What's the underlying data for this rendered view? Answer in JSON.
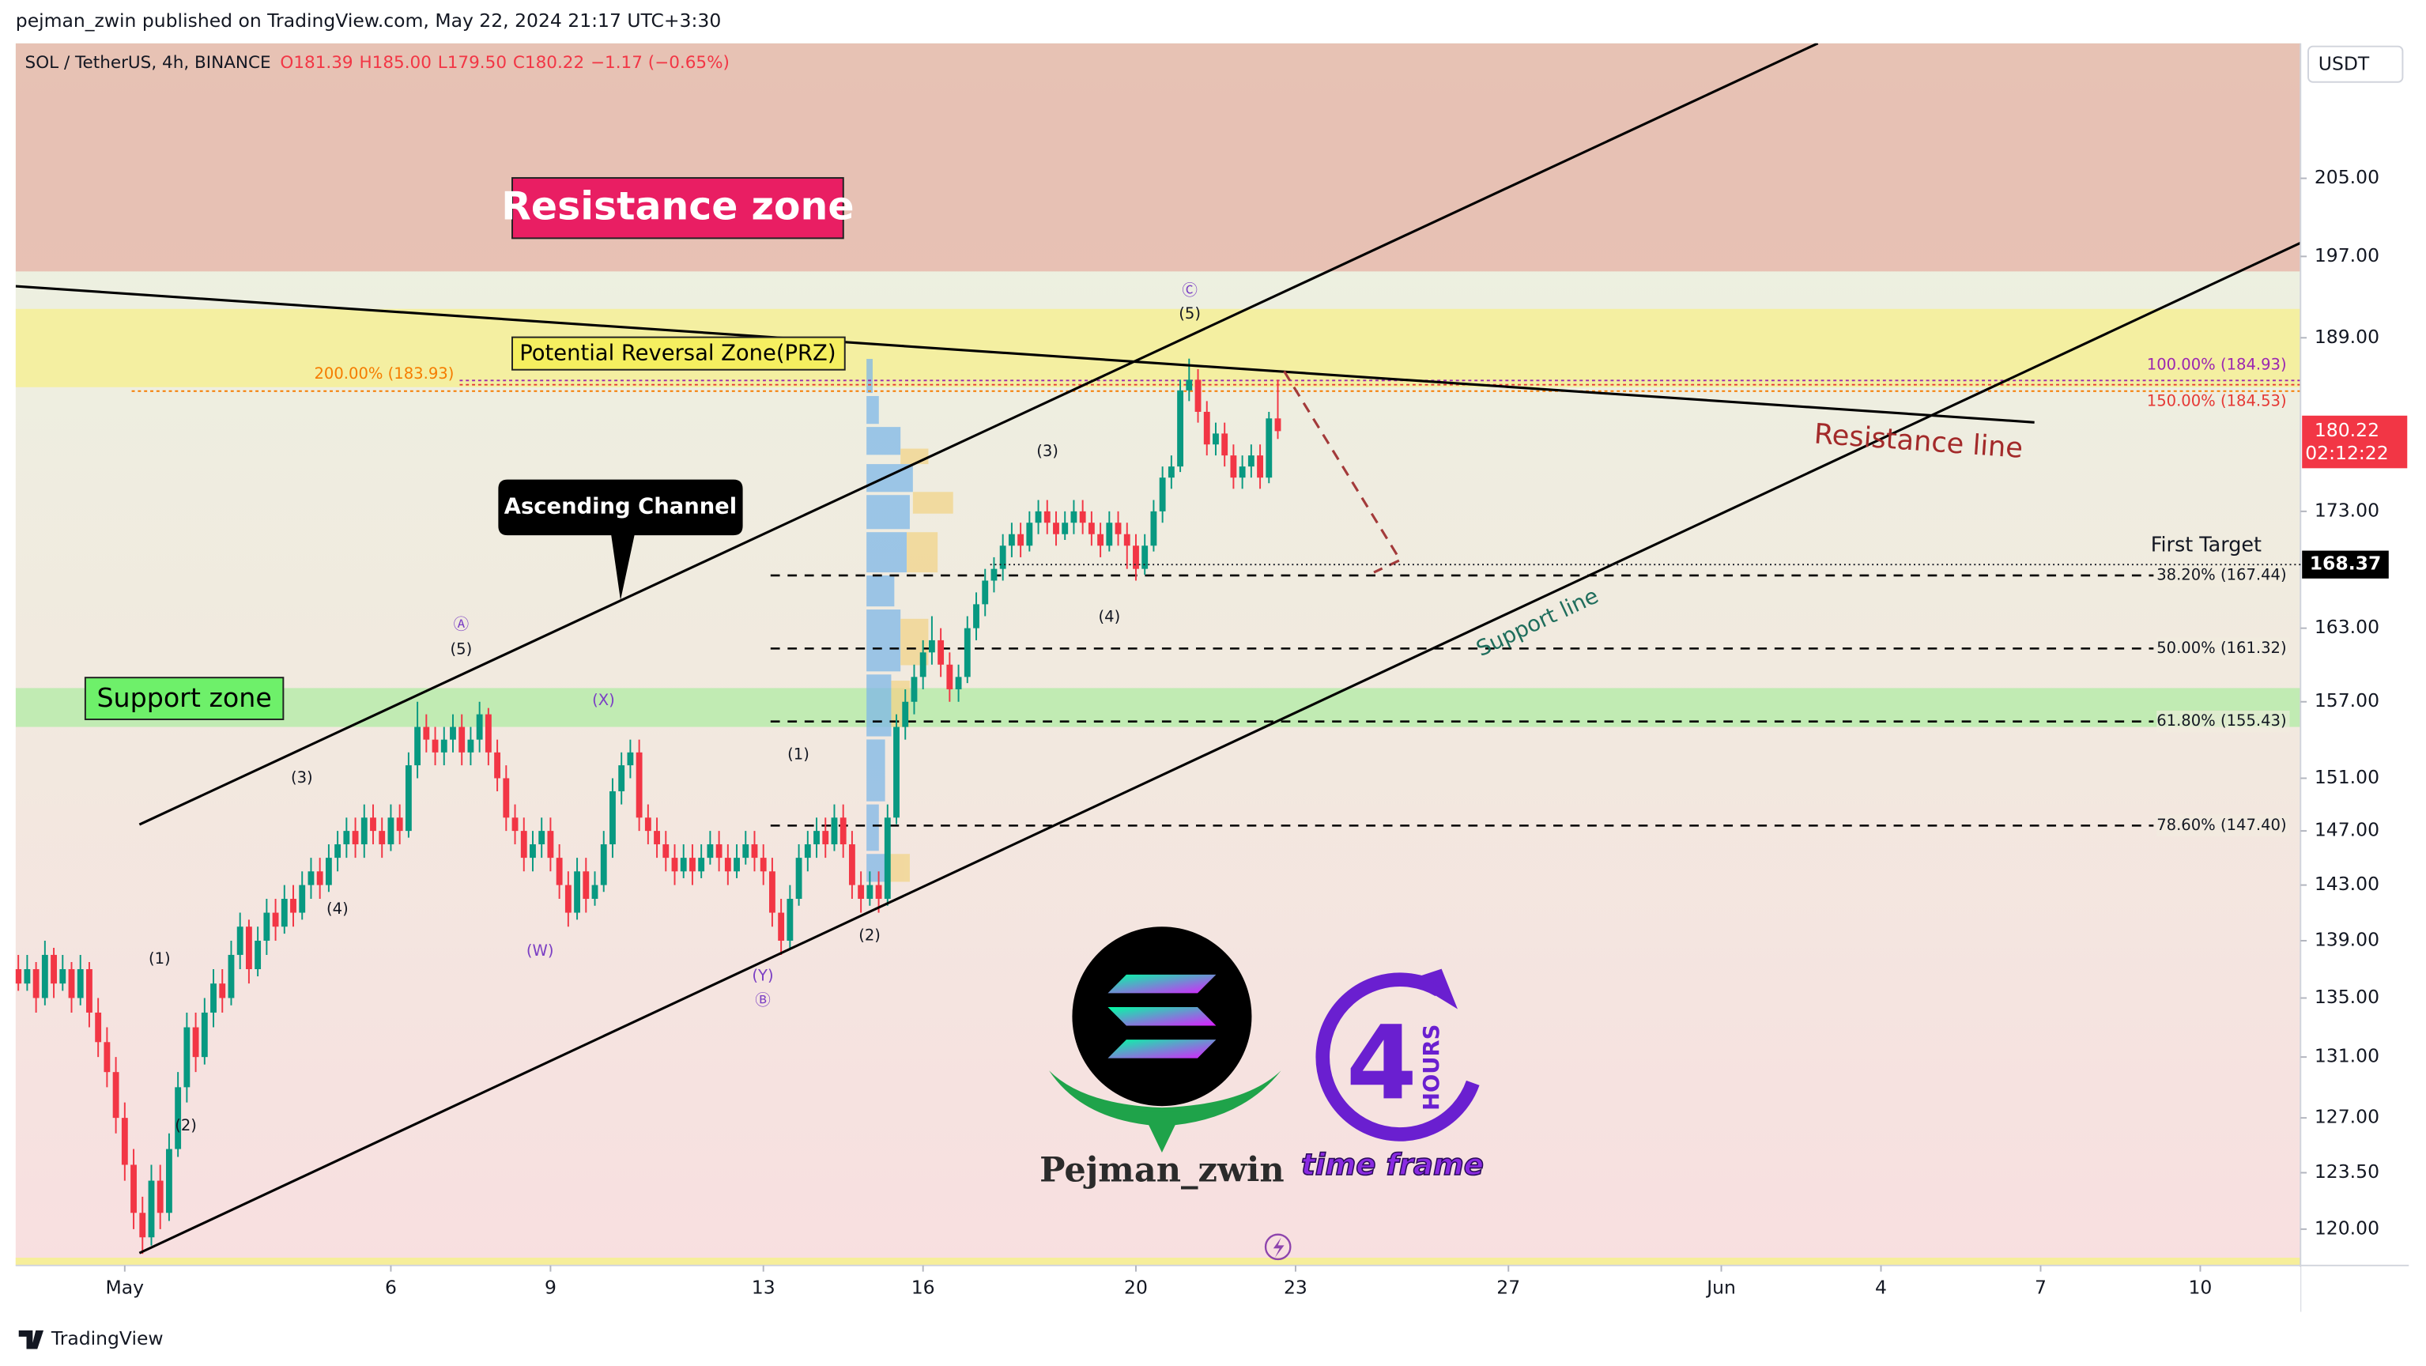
{
  "header": {
    "publisher": "pejman_zwin published on TradingView.com, May 22, 2024 21:17 UTC+3:30",
    "footer": "TradingView"
  },
  "chart_data": {
    "type": "candlestick",
    "title": "SOL / TetherUS, 4h, BINANCE",
    "legend_values": [
      "O181.39",
      "H185.00",
      "L179.50",
      "C180.22",
      "−1.17 (−0.65%)"
    ],
    "currency": "USDT",
    "log_scale": true,
    "up_color": "#089981",
    "down_color": "#f23645",
    "ylim": [
      117.8,
      219.6
    ],
    "yticks": [
      {
        "value": 120,
        "label": "120.00"
      },
      {
        "value": 123.5,
        "label": "123.50"
      },
      {
        "value": 127,
        "label": "127.00"
      },
      {
        "value": 131,
        "label": "131.00"
      },
      {
        "value": 135,
        "label": "135.00"
      },
      {
        "value": 139,
        "label": "139.00"
      },
      {
        "value": 143,
        "label": "143.00"
      },
      {
        "value": 147,
        "label": "147.00"
      },
      {
        "value": 151,
        "label": "151.00"
      },
      {
        "value": 157,
        "label": "157.00"
      },
      {
        "value": 163,
        "label": "163.00"
      },
      {
        "value": 173,
        "label": "173.00"
      },
      {
        "value": 189,
        "label": "189.00"
      },
      {
        "value": 197,
        "label": "197.00"
      },
      {
        "value": 205,
        "label": "205.00"
      }
    ],
    "xlim": [
      -0.3,
      257.3
    ],
    "xticks": [
      {
        "value": 12,
        "label": "May"
      },
      {
        "value": 42,
        "label": "6"
      },
      {
        "value": 60,
        "label": "9"
      },
      {
        "value": 84,
        "label": "13"
      },
      {
        "value": 102,
        "label": "16"
      },
      {
        "value": 126,
        "label": "20"
      },
      {
        "value": 144,
        "label": "23"
      },
      {
        "value": 168,
        "label": "27"
      },
      {
        "value": 192,
        "label": "Jun"
      },
      {
        "value": 210,
        "label": "4"
      },
      {
        "value": 228,
        "label": "7"
      },
      {
        "value": 246,
        "label": "10"
      }
    ],
    "ohlc": [
      [
        137,
        138,
        135.5,
        136
      ],
      [
        136,
        138,
        135.5,
        137
      ],
      [
        137,
        137.5,
        134,
        135
      ],
      [
        135,
        139,
        134.5,
        138
      ],
      [
        138,
        138.5,
        135,
        136
      ],
      [
        136,
        138,
        135.5,
        137
      ],
      [
        137,
        137.5,
        134,
        135
      ],
      [
        135,
        138,
        134.5,
        137
      ],
      [
        137,
        137.5,
        133,
        134
      ],
      [
        134,
        135,
        131,
        132
      ],
      [
        132,
        133,
        129,
        130
      ],
      [
        130,
        131,
        126,
        127
      ],
      [
        127,
        128,
        123,
        124
      ],
      [
        124,
        125,
        120,
        121
      ],
      [
        121,
        122,
        118.5,
        119.5
      ],
      [
        119.5,
        124,
        119,
        123
      ],
      [
        123,
        124,
        120,
        121
      ],
      [
        121,
        126,
        120.5,
        125
      ],
      [
        125,
        130,
        124.5,
        129
      ],
      [
        129,
        134,
        128,
        133
      ],
      [
        133,
        134,
        130,
        131
      ],
      [
        131,
        135,
        130.5,
        134
      ],
      [
        134,
        137,
        133,
        136
      ],
      [
        136,
        137,
        134,
        135
      ],
      [
        135,
        139,
        134.5,
        138
      ],
      [
        138,
        141,
        137,
        140
      ],
      [
        140,
        140.5,
        136,
        137
      ],
      [
        137,
        140,
        136.5,
        139
      ],
      [
        139,
        142,
        138,
        141
      ],
      [
        141,
        142,
        139,
        140
      ],
      [
        140,
        143,
        139.5,
        142
      ],
      [
        142,
        143,
        140,
        141
      ],
      [
        141,
        144,
        140.5,
        143
      ],
      [
        143,
        145,
        142,
        144
      ],
      [
        144,
        145,
        142,
        143
      ],
      [
        143,
        146,
        142.5,
        145
      ],
      [
        145,
        147,
        144,
        146
      ],
      [
        146,
        148,
        145,
        147
      ],
      [
        147,
        148,
        145,
        146
      ],
      [
        146,
        149,
        145,
        148
      ],
      [
        148,
        149,
        146,
        147
      ],
      [
        147,
        148,
        145,
        146
      ],
      [
        146,
        149,
        145.5,
        148
      ],
      [
        148,
        149,
        146,
        147
      ],
      [
        147,
        153,
        146.5,
        152
      ],
      [
        152,
        157,
        151,
        155
      ],
      [
        155,
        156,
        153,
        154
      ],
      [
        154,
        155,
        152,
        153
      ],
      [
        153,
        155,
        152,
        154
      ],
      [
        154,
        156,
        153,
        155
      ],
      [
        155,
        156,
        152,
        153
      ],
      [
        153,
        155,
        152,
        154
      ],
      [
        154,
        157,
        153,
        156
      ],
      [
        156,
        156.5,
        152,
        153
      ],
      [
        153,
        154,
        150,
        151
      ],
      [
        151,
        152,
        147,
        148
      ],
      [
        148,
        149,
        146,
        147
      ],
      [
        147,
        148,
        144,
        145
      ],
      [
        145,
        147,
        144,
        146
      ],
      [
        146,
        148,
        145,
        147
      ],
      [
        147,
        148,
        144,
        145
      ],
      [
        145,
        146,
        142,
        143
      ],
      [
        143,
        144,
        140,
        141
      ],
      [
        141,
        145,
        140.5,
        144
      ],
      [
        144,
        145,
        141,
        142
      ],
      [
        142,
        144,
        141.5,
        143
      ],
      [
        143,
        147,
        142.5,
        146
      ],
      [
        146,
        151,
        145,
        150
      ],
      [
        150,
        153,
        149,
        152
      ],
      [
        152,
        154,
        151,
        153
      ],
      [
        153,
        154,
        147,
        148
      ],
      [
        148,
        149,
        146,
        147
      ],
      [
        147,
        148,
        145,
        146
      ],
      [
        146,
        147,
        144,
        145
      ],
      [
        145,
        146,
        143,
        144
      ],
      [
        144,
        146,
        143.5,
        145
      ],
      [
        145,
        146,
        143,
        144
      ],
      [
        144,
        146,
        143.5,
        145
      ],
      [
        145,
        147,
        144.5,
        146
      ],
      [
        146,
        147,
        144,
        145
      ],
      [
        145,
        146,
        143,
        144
      ],
      [
        144,
        146,
        143.5,
        145
      ],
      [
        145,
        147,
        144.5,
        146
      ],
      [
        146,
        147,
        144,
        145
      ],
      [
        145,
        146,
        143,
        144
      ],
      [
        144,
        145,
        140,
        141
      ],
      [
        141,
        142,
        138,
        139
      ],
      [
        139,
        143,
        138.5,
        142
      ],
      [
        142,
        146,
        141.5,
        145
      ],
      [
        145,
        147,
        144,
        146
      ],
      [
        146,
        148,
        145,
        147
      ],
      [
        147,
        148,
        145,
        146
      ],
      [
        146,
        149,
        145.5,
        148
      ],
      [
        148,
        149,
        145,
        146
      ],
      [
        146,
        147,
        142,
        143
      ],
      [
        143,
        144,
        141,
        142
      ],
      [
        142,
        144,
        141.5,
        143
      ],
      [
        143,
        144,
        141,
        142
      ],
      [
        142,
        149,
        141.5,
        148
      ],
      [
        148,
        156,
        147.5,
        155
      ],
      [
        155,
        158,
        154,
        157
      ],
      [
        157,
        160,
        156,
        159
      ],
      [
        159,
        162,
        158,
        161
      ],
      [
        161,
        164,
        160,
        162
      ],
      [
        162,
        163,
        159,
        160
      ],
      [
        160,
        161,
        157,
        158
      ],
      [
        158,
        160,
        157,
        159
      ],
      [
        159,
        164,
        158.5,
        163
      ],
      [
        163,
        166,
        162,
        165
      ],
      [
        165,
        168,
        164,
        167
      ],
      [
        167,
        169,
        166,
        168
      ],
      [
        168,
        171,
        167,
        170
      ],
      [
        170,
        172,
        169,
        171
      ],
      [
        171,
        172,
        169,
        170
      ],
      [
        170,
        173,
        169.5,
        172
      ],
      [
        172,
        174,
        171,
        173
      ],
      [
        173,
        174,
        171,
        172
      ],
      [
        172,
        173,
        170,
        171
      ],
      [
        171,
        173,
        170.5,
        172
      ],
      [
        172,
        174,
        171,
        173
      ],
      [
        173,
        174,
        171,
        172
      ],
      [
        172,
        173,
        170,
        171
      ],
      [
        171,
        172,
        169,
        170
      ],
      [
        170,
        173,
        169.5,
        172
      ],
      [
        172,
        173,
        170,
        171
      ],
      [
        171,
        172,
        168,
        170
      ],
      [
        170,
        171,
        167,
        168
      ],
      [
        168,
        171,
        167.5,
        170
      ],
      [
        170,
        174,
        169.5,
        173
      ],
      [
        173,
        177,
        172,
        176
      ],
      [
        176,
        178,
        175,
        177
      ],
      [
        177,
        185,
        176.5,
        184
      ],
      [
        184,
        187,
        183,
        185
      ],
      [
        185,
        186,
        181,
        182
      ],
      [
        182,
        183,
        178,
        179
      ],
      [
        179,
        181,
        178,
        180
      ],
      [
        180,
        181,
        177,
        178
      ],
      [
        178,
        179,
        175,
        176
      ],
      [
        176,
        178,
        175,
        177
      ],
      [
        177,
        179,
        176,
        178
      ],
      [
        178,
        179,
        175,
        176
      ],
      [
        176,
        182,
        175.5,
        181.39
      ],
      [
        181.39,
        185,
        179.5,
        180.22
      ]
    ],
    "current_price": {
      "value": 180.22,
      "label": "180.22",
      "countdown": "02:12:22"
    },
    "target": {
      "value": 168.37,
      "label": "168.37",
      "text": "First Target"
    },
    "zones": [
      {
        "label": "Resistance zone",
        "low": 195.5,
        "high": 219.6,
        "color": "#e6b9ac"
      },
      {
        "label": "Potential Reversal Zone(PRZ)",
        "low": 184.3,
        "high": 191.8,
        "color": "#f5ee95"
      },
      {
        "label": "Support zone",
        "low": 155.0,
        "high": 158.1,
        "color": "#b9ebab"
      }
    ],
    "fib_levels": [
      {
        "value": 184.93,
        "label": "100.00% (184.93)",
        "color": "#9c27b0"
      },
      {
        "value": 184.53,
        "label": "150.00% (184.53)",
        "color": "#e53935"
      },
      {
        "value": 183.93,
        "label": "200.00% (183.93)",
        "color": "#f57c00"
      },
      {
        "value": 167.44,
        "label": "38.20% (167.44)",
        "color": "#000000"
      },
      {
        "value": 161.32,
        "label": "50.00% (161.32)",
        "color": "#000000"
      },
      {
        "value": 155.43,
        "label": "61.80% (155.43)",
        "color": "#000000"
      },
      {
        "value": 147.4,
        "label": "78.60% (147.40)",
        "color": "#000000"
      }
    ],
    "annotations": {
      "channel": "Ascending Channel",
      "resistance_line": "Resistance line",
      "support_line": "Support line"
    },
    "wave_labels": [
      "(1)",
      "(2)",
      "(3)",
      "(4)",
      "(5)",
      "Ⓐ",
      "(W)",
      "(X)",
      "(Y)",
      "Ⓑ",
      "(1)",
      "(2)",
      "(3)",
      "(4)",
      "(5)",
      "Ⓒ"
    ]
  },
  "logo": {
    "author": "Pejman_zwin",
    "number": "4",
    "unit": "HOURS",
    "caption": "time frame"
  }
}
